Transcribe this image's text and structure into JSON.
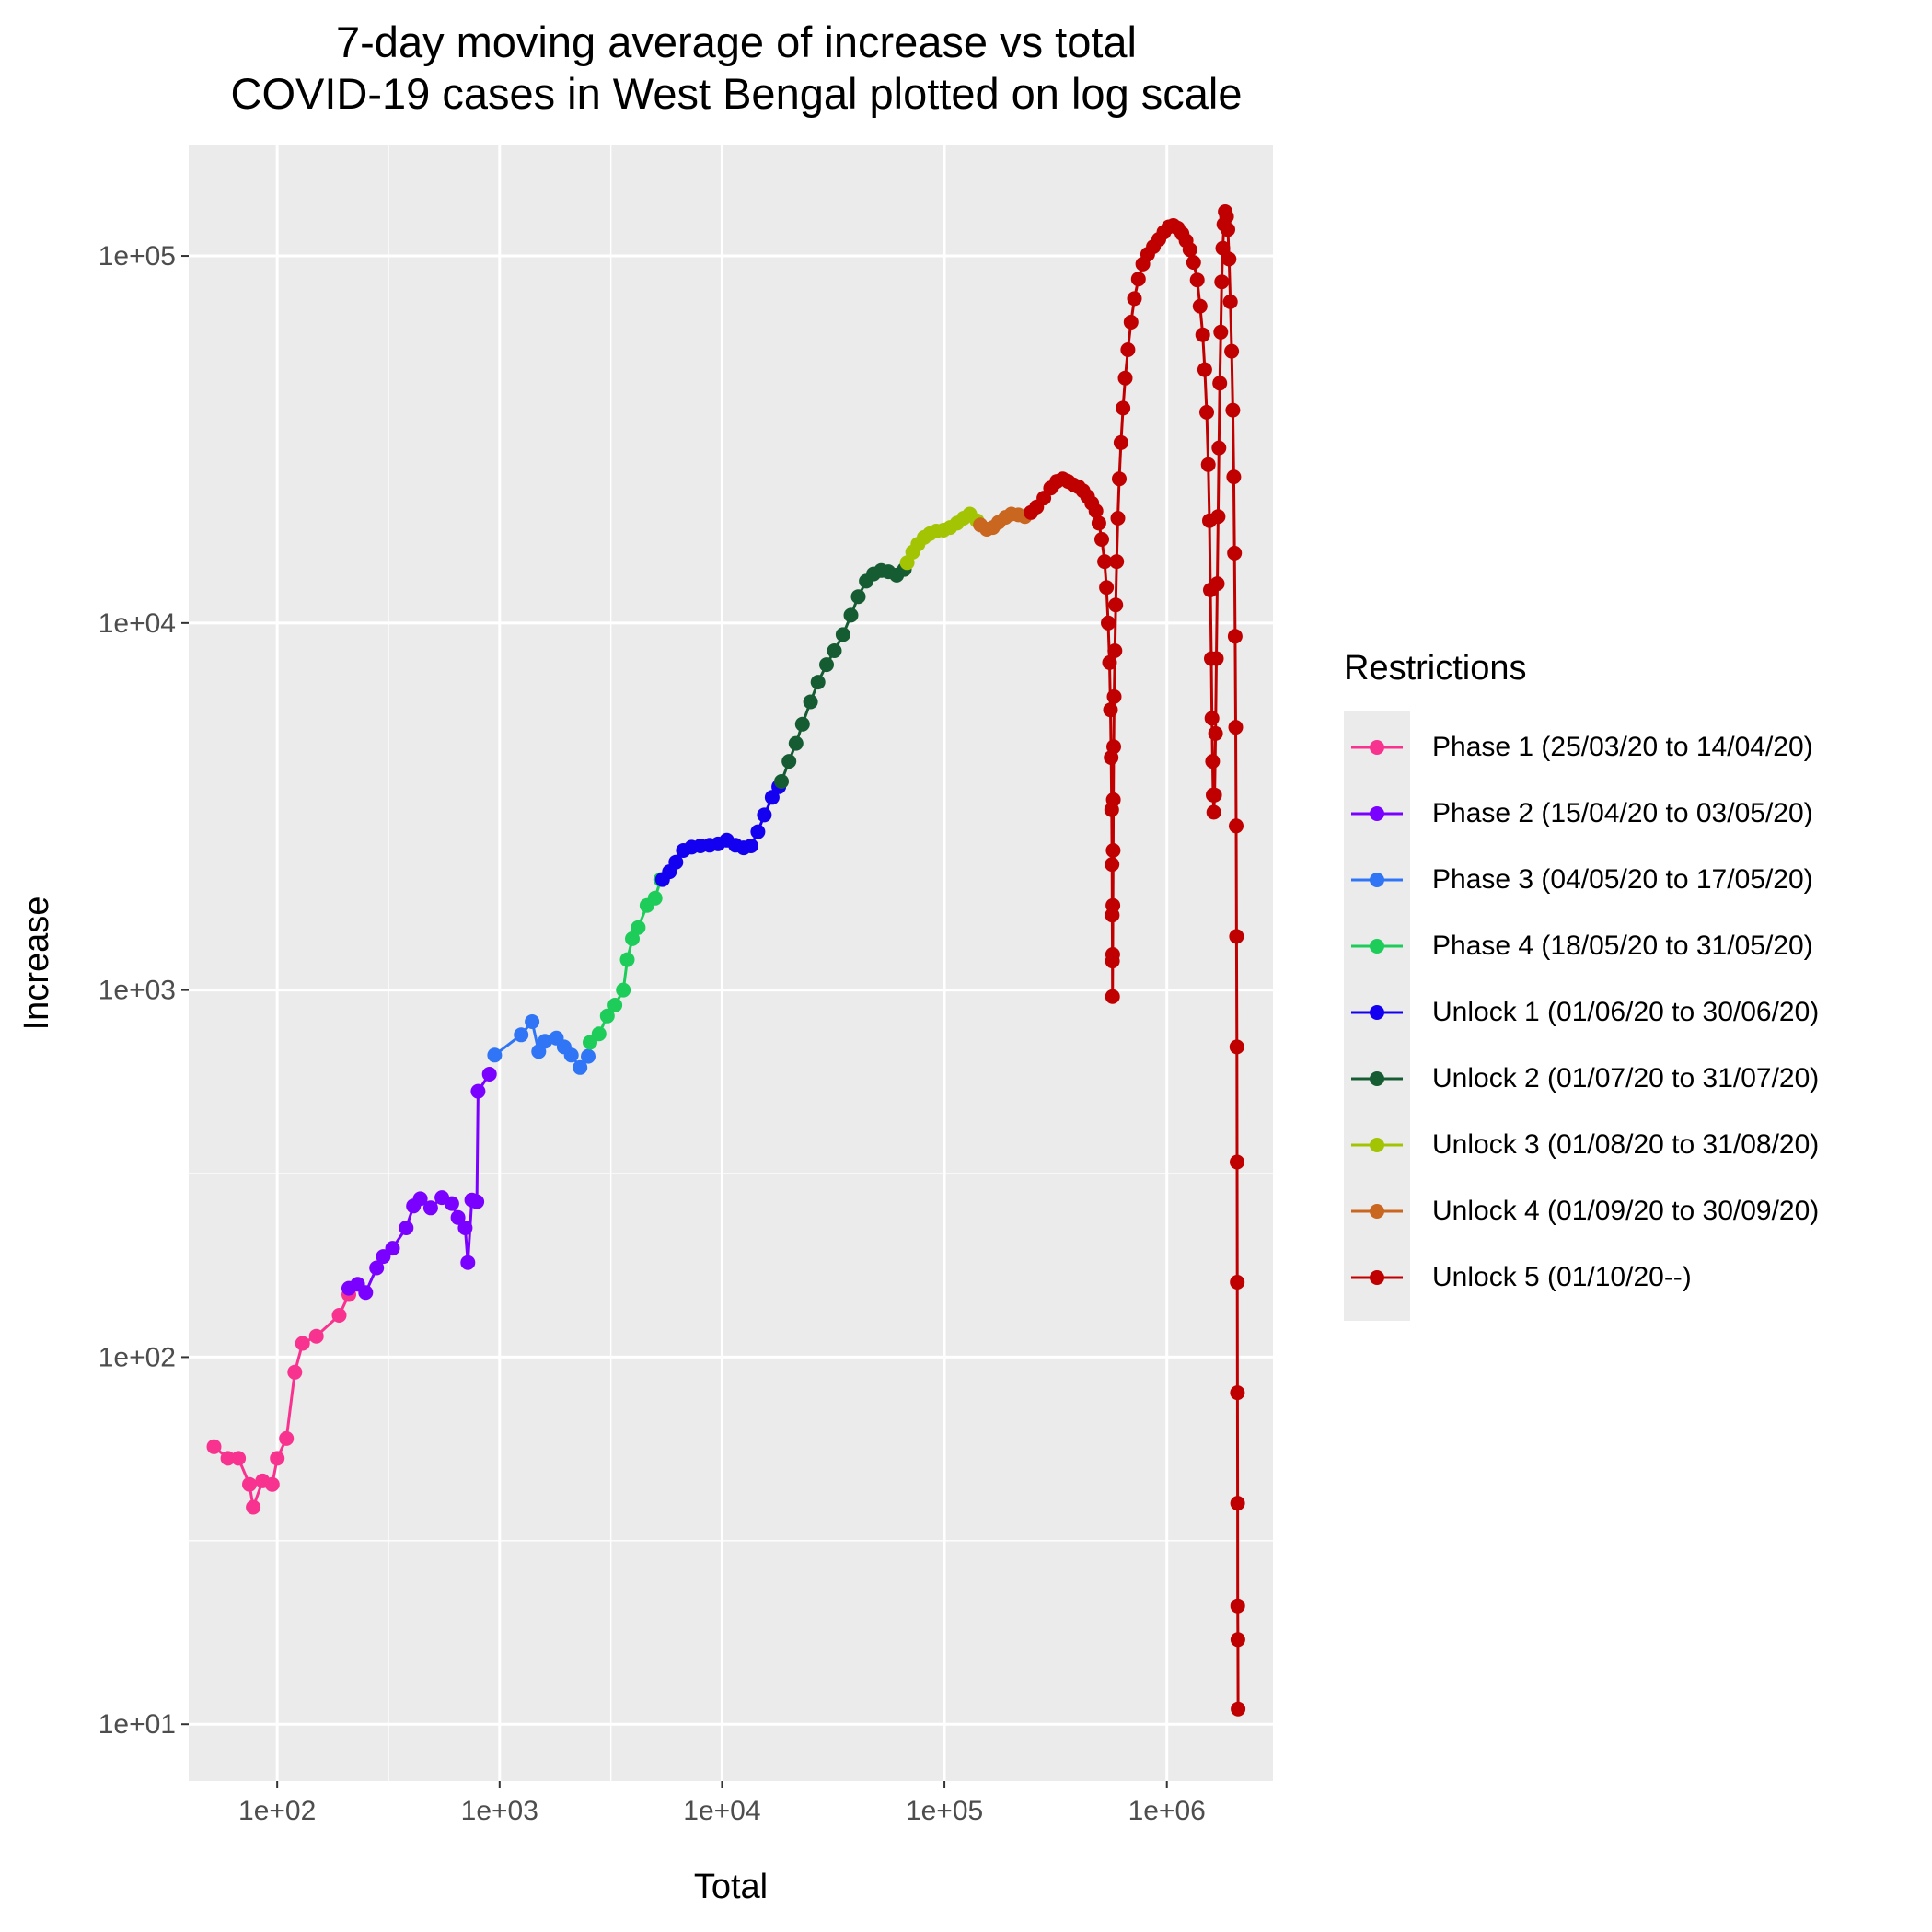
{
  "chart_data": {
    "type": "line",
    "title": [
      "7-day moving average of increase vs total",
      "COVID-19 cases in West Bengal plotted on log scale"
    ],
    "xlabel": "Total",
    "ylabel": "Increase",
    "x_scale": "log",
    "y_scale": "log",
    "xlim": [
      40,
      3000000
    ],
    "ylim": [
      7,
      200000
    ],
    "x_ticks": [
      100,
      1000,
      10000,
      100000,
      1000000
    ],
    "x_tick_labels": [
      "1e+02",
      "1e+03",
      "1e+04",
      "1e+05",
      "1e+06"
    ],
    "y_ticks": [
      10,
      100,
      1000,
      10000,
      100000
    ],
    "y_tick_labels": [
      "1e+01",
      "1e+02",
      "1e+03",
      "1e+04",
      "1e+05"
    ],
    "grid": true,
    "legend_position": "right",
    "legend_title": "Restrictions",
    "series": [
      {
        "name": "Phase 1 (25/03/20 to 14/04/20)",
        "color": "#F8338F",
        "points": [
          [
            52,
            57
          ],
          [
            60,
            53
          ],
          [
            67,
            53
          ],
          [
            75,
            45
          ],
          [
            78,
            39
          ],
          [
            86,
            46
          ],
          [
            95,
            45
          ],
          [
            100,
            53
          ],
          [
            110,
            60
          ],
          [
            120,
            91
          ],
          [
            130,
            109
          ],
          [
            150,
            114
          ],
          [
            190,
            130
          ],
          [
            210,
            148
          ]
        ]
      },
      {
        "name": "Phase 2 (15/04/20 to 03/05/20)",
        "color": "#7A00FF",
        "points": [
          [
            210,
            154
          ],
          [
            230,
            158
          ],
          [
            250,
            150
          ],
          [
            280,
            175
          ],
          [
            300,
            188
          ],
          [
            330,
            198
          ],
          [
            380,
            225
          ],
          [
            410,
            258
          ],
          [
            440,
            270
          ],
          [
            490,
            255
          ],
          [
            550,
            272
          ],
          [
            610,
            262
          ],
          [
            650,
            240
          ],
          [
            700,
            225
          ],
          [
            720,
            181
          ],
          [
            750,
            268
          ],
          [
            790,
            265
          ],
          [
            800,
            530
          ],
          [
            900,
            590
          ]
        ]
      },
      {
        "name": "Phase 3 (04/05/20 to 17/05/20)",
        "color": "#2F75F5",
        "points": [
          [
            950,
            665
          ],
          [
            1250,
            755
          ],
          [
            1400,
            820
          ],
          [
            1500,
            680
          ],
          [
            1600,
            725
          ],
          [
            1800,
            740
          ],
          [
            1950,
            700
          ],
          [
            2100,
            665
          ],
          [
            2300,
            615
          ],
          [
            2500,
            660
          ]
        ]
      },
      {
        "name": "Phase 4 (18/05/20 to 31/05/20)",
        "color": "#1ECC5A",
        "points": [
          [
            2550,
            720
          ],
          [
            2800,
            760
          ],
          [
            3050,
            850
          ],
          [
            3300,
            910
          ],
          [
            3600,
            1000
          ],
          [
            3750,
            1210
          ],
          [
            3950,
            1380
          ],
          [
            4200,
            1480
          ],
          [
            4600,
            1700
          ],
          [
            5000,
            1780
          ],
          [
            5300,
            2000
          ]
        ]
      },
      {
        "name": "Unlock 1 (01/06/20 to 30/06/20)",
        "color": "#1400F0",
        "points": [
          [
            5400,
            2000
          ],
          [
            5800,
            2100
          ],
          [
            6200,
            2230
          ],
          [
            6700,
            2400
          ],
          [
            7300,
            2450
          ],
          [
            8000,
            2470
          ],
          [
            8800,
            2480
          ],
          [
            9600,
            2500
          ],
          [
            10500,
            2560
          ],
          [
            11500,
            2480
          ],
          [
            12500,
            2440
          ],
          [
            13500,
            2470
          ],
          [
            14500,
            2700
          ],
          [
            15500,
            3000
          ],
          [
            16800,
            3350
          ],
          [
            18000,
            3580
          ]
        ]
      },
      {
        "name": "Unlock 2 (01/07/20 to 31/07/20)",
        "color": "#165C33",
        "points": [
          [
            18500,
            3700
          ],
          [
            20000,
            4200
          ],
          [
            21500,
            4700
          ],
          [
            23000,
            5300
          ],
          [
            25000,
            6100
          ],
          [
            27000,
            6900
          ],
          [
            29500,
            7700
          ],
          [
            32000,
            8400
          ],
          [
            35000,
            9300
          ],
          [
            38000,
            10500
          ],
          [
            41000,
            11800
          ],
          [
            44500,
            13000
          ],
          [
            48000,
            13600
          ],
          [
            52000,
            13900
          ],
          [
            56000,
            13800
          ],
          [
            61000,
            13500
          ],
          [
            66000,
            14000
          ]
        ]
      },
      {
        "name": "Unlock 3 (01/08/20 to 31/08/20)",
        "color": "#A3C403",
        "points": [
          [
            68000,
            14600
          ],
          [
            72000,
            15600
          ],
          [
            76000,
            16400
          ],
          [
            81000,
            17100
          ],
          [
            86000,
            17500
          ],
          [
            92000,
            17800
          ],
          [
            99000,
            17900
          ],
          [
            106000,
            18200
          ],
          [
            114000,
            18700
          ],
          [
            122000,
            19300
          ],
          [
            130000,
            19800
          ],
          [
            140000,
            19000
          ]
        ]
      },
      {
        "name": "Unlock 4 (01/09/20 to 30/09/20)",
        "color": "#C9661F",
        "points": [
          [
            145000,
            18500
          ],
          [
            155000,
            18000
          ],
          [
            165000,
            18200
          ],
          [
            175000,
            18800
          ],
          [
            188000,
            19400
          ],
          [
            200000,
            19800
          ],
          [
            215000,
            19700
          ],
          [
            230000,
            19500
          ]
        ]
      },
      {
        "name": "Unlock 5 (01/10/20--)",
        "color": "#C00000",
        "points": [
          [
            245000,
            20000
          ],
          [
            260000,
            20700
          ],
          [
            280000,
            21900
          ],
          [
            300000,
            23300
          ],
          [
            320000,
            24300
          ],
          [
            340000,
            24700
          ],
          [
            360000,
            24300
          ],
          [
            380000,
            23800
          ],
          [
            400000,
            23500
          ],
          [
            420000,
            22900
          ],
          [
            440000,
            22100
          ],
          [
            460000,
            21200
          ],
          [
            480000,
            20200
          ],
          [
            495000,
            18700
          ],
          [
            510000,
            16900
          ],
          [
            525000,
            14700
          ],
          [
            535000,
            12500
          ],
          [
            545000,
            10000
          ],
          [
            553000,
            7800
          ],
          [
            558000,
            5800
          ],
          [
            562000,
            4300
          ],
          [
            565000,
            3100
          ],
          [
            567000,
            2200
          ],
          [
            568500,
            1600
          ],
          [
            569500,
            1200
          ],
          [
            570000,
            960
          ],
          [
            571000,
            1250
          ],
          [
            572000,
            1700
          ],
          [
            573500,
            2400
          ],
          [
            575000,
            3300
          ],
          [
            577000,
            4600
          ],
          [
            580000,
            6300
          ],
          [
            584000,
            8400
          ],
          [
            589000,
            11200
          ],
          [
            595000,
            14700
          ],
          [
            602000,
            19300
          ],
          [
            611000,
            24700
          ],
          [
            622000,
            31000
          ],
          [
            635000,
            38500
          ],
          [
            650000,
            46500
          ],
          [
            668000,
            55500
          ],
          [
            690000,
            66000
          ],
          [
            715000,
            76500
          ],
          [
            745000,
            86500
          ],
          [
            780000,
            95000
          ],
          [
            820000,
            101000
          ],
          [
            870000,
            106000
          ],
          [
            920000,
            111000
          ],
          [
            970000,
            116000
          ],
          [
            1020000,
            120000
          ],
          [
            1070000,
            121000
          ],
          [
            1120000,
            119000
          ],
          [
            1170000,
            115000
          ],
          [
            1220000,
            110000
          ],
          [
            1270000,
            104000
          ],
          [
            1320000,
            96000
          ],
          [
            1370000,
            86000
          ],
          [
            1410000,
            73000
          ],
          [
            1450000,
            61000
          ],
          [
            1480000,
            49000
          ],
          [
            1510000,
            37500
          ],
          [
            1535000,
            27000
          ],
          [
            1555000,
            19000
          ],
          [
            1570000,
            12300
          ],
          [
            1585000,
            8000
          ],
          [
            1595000,
            5500
          ],
          [
            1605000,
            4200
          ],
          [
            1615000,
            3400
          ],
          [
            1625000,
            3050
          ],
          [
            1640000,
            3400
          ],
          [
            1655000,
            5000
          ],
          [
            1670000,
            8000
          ],
          [
            1685000,
            12800
          ],
          [
            1700000,
            19500
          ],
          [
            1715000,
            30000
          ],
          [
            1730000,
            45000
          ],
          [
            1748000,
            62000
          ],
          [
            1765000,
            85000
          ],
          [
            1785000,
            105000
          ],
          [
            1805000,
            122000
          ],
          [
            1830000,
            132000
          ],
          [
            1855000,
            128000
          ],
          [
            1880000,
            118000
          ],
          [
            1905000,
            98000
          ],
          [
            1930000,
            75000
          ],
          [
            1955000,
            55000
          ],
          [
            1980000,
            38000
          ],
          [
            2000000,
            25000
          ],
          [
            2015000,
            15500
          ],
          [
            2028000,
            9200
          ],
          [
            2040000,
            5200
          ],
          [
            2050000,
            2800
          ],
          [
            2058000,
            1400
          ],
          [
            2064000,
            700
          ],
          [
            2069000,
            340
          ],
          [
            2073000,
            160
          ],
          [
            2077000,
            80
          ],
          [
            2080000,
            40
          ],
          [
            2083000,
            21
          ],
          [
            2086000,
            17
          ],
          [
            2090000,
            11
          ]
        ]
      }
    ]
  }
}
